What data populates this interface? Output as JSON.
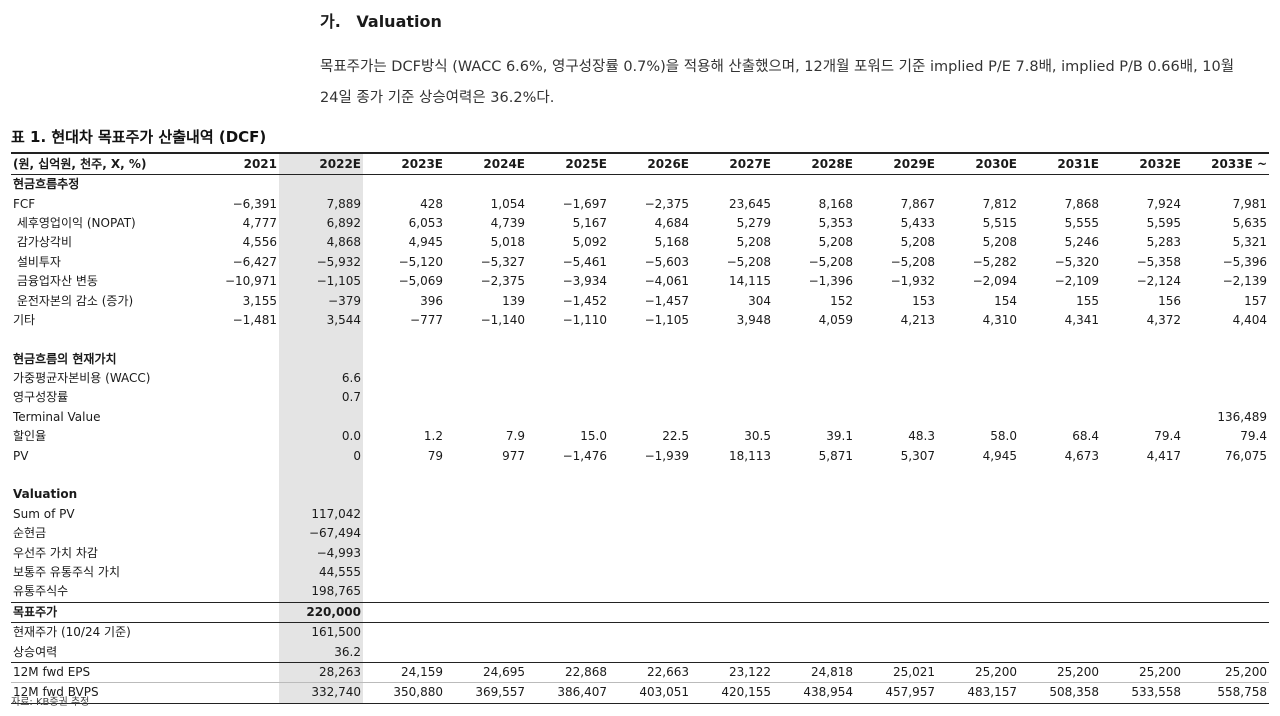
{
  "heading": {
    "num": "가.",
    "title": "Valuation"
  },
  "paragraph": "목표주가는 DCF방식 (WACC 6.6%, 영구성장률 0.7%)을 적용해 산출했으며, 12개월 포워드 기준 implied P/E 7.8배, implied P/B 0.66배, 10월 24일 종가 기준 상승여력은 36.2%다.",
  "table_title": "표 1. 현대차 목표주가 산출내역 (DCF)",
  "columns": [
    "(원, 십억원, 천주, X, %)",
    "2021",
    "2022E",
    "2023E",
    "2024E",
    "2025E",
    "2026E",
    "2027E",
    "2028E",
    "2029E",
    "2030E",
    "2031E",
    "2032E",
    "2033E ~"
  ],
  "rows": [
    {
      "label": "현금흐름추정",
      "values": [
        "",
        "",
        "",
        "",
        "",
        "",
        "",
        "",
        "",
        "",
        "",
        ""
      ],
      "style": "sec"
    },
    {
      "label": "FCF",
      "values": [
        "−6,391",
        "7,889",
        "428",
        "1,054",
        "−1,697",
        "−2,375",
        "23,645",
        "8,168",
        "7,867",
        "7,812",
        "7,868",
        "7,924",
        "7,981"
      ]
    },
    {
      "label": " 세후영업이익 (NOPAT)",
      "values": [
        "4,777",
        "6,892",
        "6,053",
        "4,739",
        "5,167",
        "4,684",
        "5,279",
        "5,353",
        "5,433",
        "5,515",
        "5,555",
        "5,595",
        "5,635"
      ]
    },
    {
      "label": " 감가상각비",
      "values": [
        "4,556",
        "4,868",
        "4,945",
        "5,018",
        "5,092",
        "5,168",
        "5,208",
        "5,208",
        "5,208",
        "5,208",
        "5,246",
        "5,283",
        "5,321"
      ]
    },
    {
      "label": " 설비투자",
      "values": [
        "−6,427",
        "−5,932",
        "−5,120",
        "−5,327",
        "−5,461",
        "−5,603",
        "−5,208",
        "−5,208",
        "−5,208",
        "−5,282",
        "−5,320",
        "−5,358",
        "−5,396"
      ]
    },
    {
      "label": " 금융업자산 변동",
      "values": [
        "−10,971",
        "−1,105",
        "−5,069",
        "−2,375",
        "−3,934",
        "−4,061",
        "14,115",
        "−1,396",
        "−1,932",
        "−2,094",
        "−2,109",
        "−2,124",
        "−2,139"
      ]
    },
    {
      "label": " 운전자본의 감소 (증가)",
      "values": [
        "3,155",
        "−379",
        "396",
        "139",
        "−1,452",
        "−1,457",
        "304",
        "152",
        "153",
        "154",
        "155",
        "156",
        "157"
      ]
    },
    {
      "label": "기타",
      "values": [
        "−1,481",
        "3,544",
        "−777",
        "−1,140",
        "−1,110",
        "−1,105",
        "3,948",
        "4,059",
        "4,213",
        "4,310",
        "4,341",
        "4,372",
        "4,404"
      ]
    },
    {
      "label": "",
      "values": [
        "",
        "",
        "",
        "",
        "",
        "",
        "",
        "",
        "",
        "",
        "",
        "",
        ""
      ]
    },
    {
      "label": "현금흐름의 현재가치",
      "values": [
        "",
        "",
        "",
        "",
        "",
        "",
        "",
        "",
        "",
        "",
        "",
        "",
        ""
      ],
      "style": "sec"
    },
    {
      "label": "가중평균자본비용 (WACC)",
      "values": [
        "",
        "6.6",
        "",
        "",
        "",
        "",
        "",
        "",
        "",
        "",
        "",
        "",
        ""
      ]
    },
    {
      "label": "영구성장률",
      "values": [
        "",
        "0.7",
        "",
        "",
        "",
        "",
        "",
        "",
        "",
        "",
        "",
        "",
        ""
      ]
    },
    {
      "label": "Terminal Value",
      "values": [
        "",
        "",
        "",
        "",
        "",
        "",
        "",
        "",
        "",
        "",
        "",
        "",
        "136,489"
      ]
    },
    {
      "label": "할인율",
      "values": [
        "",
        "0.0",
        "1.2",
        "7.9",
        "15.0",
        "22.5",
        "30.5",
        "39.1",
        "48.3",
        "58.0",
        "68.4",
        "79.4",
        "79.4"
      ]
    },
    {
      "label": "PV",
      "values": [
        "",
        "0",
        "79",
        "977",
        "−1,476",
        "−1,939",
        "18,113",
        "5,871",
        "5,307",
        "4,945",
        "4,673",
        "4,417",
        "76,075"
      ]
    },
    {
      "label": "",
      "values": [
        "",
        "",
        "",
        "",
        "",
        "",
        "",
        "",
        "",
        "",
        "",
        "",
        ""
      ]
    },
    {
      "label": "Valuation",
      "values": [
        "",
        "",
        "",
        "",
        "",
        "",
        "",
        "",
        "",
        "",
        "",
        "",
        ""
      ],
      "style": "sec"
    },
    {
      "label": "Sum of PV",
      "values": [
        "",
        "117,042",
        "",
        "",
        "",
        "",
        "",
        "",
        "",
        "",
        "",
        "",
        ""
      ]
    },
    {
      "label": "순현금",
      "values": [
        "",
        "−67,494",
        "",
        "",
        "",
        "",
        "",
        "",
        "",
        "",
        "",
        "",
        ""
      ]
    },
    {
      "label": "우선주 가치 차감",
      "values": [
        "",
        "−4,993",
        "",
        "",
        "",
        "",
        "",
        "",
        "",
        "",
        "",
        "",
        ""
      ]
    },
    {
      "label": "보통주 유통주식 가치",
      "values": [
        "",
        "44,555",
        "",
        "",
        "",
        "",
        "",
        "",
        "",
        "",
        "",
        "",
        ""
      ]
    },
    {
      "label": "유통주식수",
      "values": [
        "",
        "198,765",
        "",
        "",
        "",
        "",
        "",
        "",
        "",
        "",
        "",
        "",
        ""
      ]
    },
    {
      "label": "목표주가",
      "values": [
        "",
        "220,000",
        "",
        "",
        "",
        "",
        "",
        "",
        "",
        "",
        "",
        "",
        ""
      ],
      "style": "bold topline"
    },
    {
      "label": "현재주가 (10/24 기준)",
      "values": [
        "",
        "161,500",
        "",
        "",
        "",
        "",
        "",
        "",
        "",
        "",
        "",
        "",
        ""
      ],
      "style": "topline"
    },
    {
      "label": "상승여력",
      "values": [
        "",
        "36.2",
        "",
        "",
        "",
        "",
        "",
        "",
        "",
        "",
        "",
        "",
        ""
      ]
    },
    {
      "label": "12M fwd EPS",
      "values": [
        "",
        "28,263",
        "24,159",
        "24,695",
        "22,868",
        "22,663",
        "23,122",
        "24,818",
        "25,021",
        "25,200",
        "25,200",
        "25,200",
        "25,200"
      ],
      "style": "topline"
    },
    {
      "label": "12M fwd BVPS",
      "values": [
        "",
        "332,740",
        "350,880",
        "369,557",
        "386,407",
        "403,051",
        "420,155",
        "438,954",
        "457,957",
        "483,157",
        "508,358",
        "533,558",
        "558,758"
      ],
      "style": "thinline lastline"
    }
  ],
  "source": "자료: KB증권 추정"
}
